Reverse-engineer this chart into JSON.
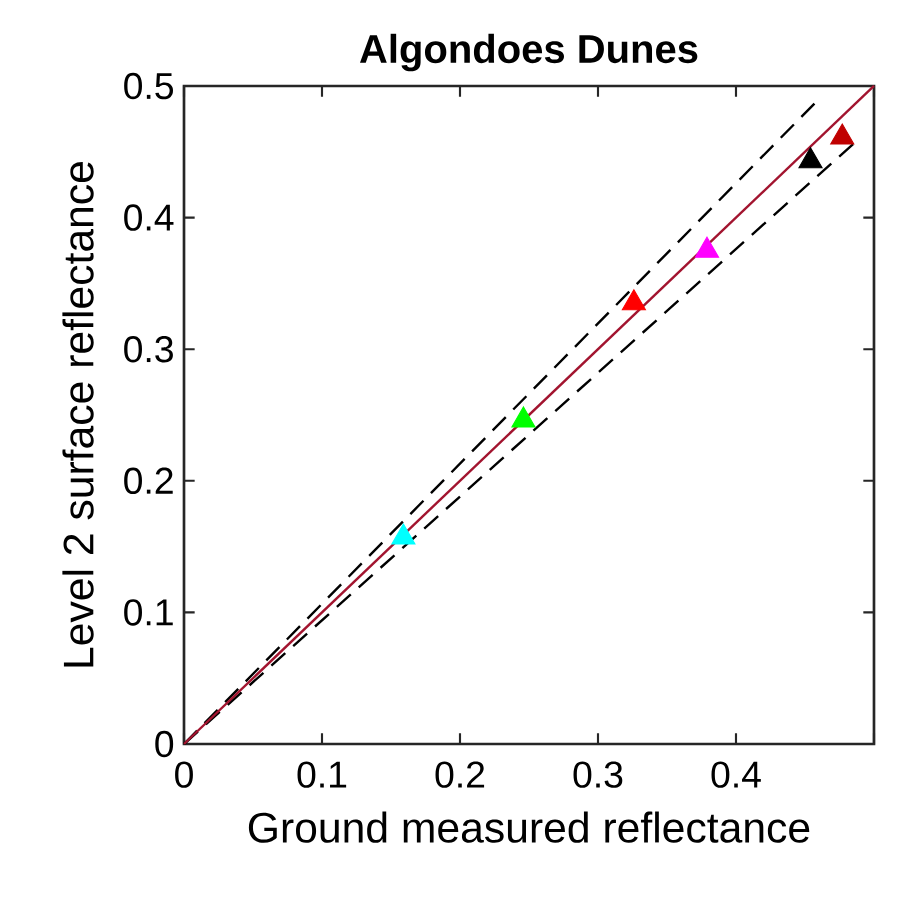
{
  "chart_data": {
    "type": "scatter",
    "title": "Algondoes Dunes",
    "xlabel": "Ground measured reflectance",
    "ylabel": "Level 2 surface reflectance",
    "xlim": [
      0,
      0.5
    ],
    "ylim": [
      0,
      0.5
    ],
    "xticks": [
      0,
      0.1,
      0.2,
      0.3,
      0.4,
      {
        "value": 0.5,
        "label": null
      }
    ],
    "yticks": [
      0,
      0.1,
      0.2,
      0.3,
      0.4,
      0.5
    ],
    "grid": false,
    "series": [
      {
        "type": "line",
        "color": "#000000",
        "line_style": "dashed",
        "marker": "none",
        "x": [
          0,
          0.46
        ],
        "values": [
          0,
          0.49
        ]
      },
      {
        "type": "line",
        "color": "#000000",
        "line_style": "dashed",
        "marker": "none",
        "x": [
          0,
          0.485
        ],
        "values": [
          0,
          0.456
        ]
      },
      {
        "type": "line",
        "color": "#a2142f",
        "line_style": "solid",
        "marker": "none",
        "x": [
          0,
          0.5
        ],
        "values": [
          0,
          0.5
        ]
      },
      {
        "marker": "triangle",
        "x": [
          0.159,
          0.246,
          0.326,
          0.379,
          0.454,
          0.477
        ],
        "values": [
          0.157,
          0.246,
          0.335,
          0.375,
          0.443,
          0.461
        ],
        "colors": [
          "#00ffff",
          "#00ff00",
          "#ff0000",
          "#ff00ff",
          "#000000",
          "#c00000"
        ]
      }
    ]
  }
}
